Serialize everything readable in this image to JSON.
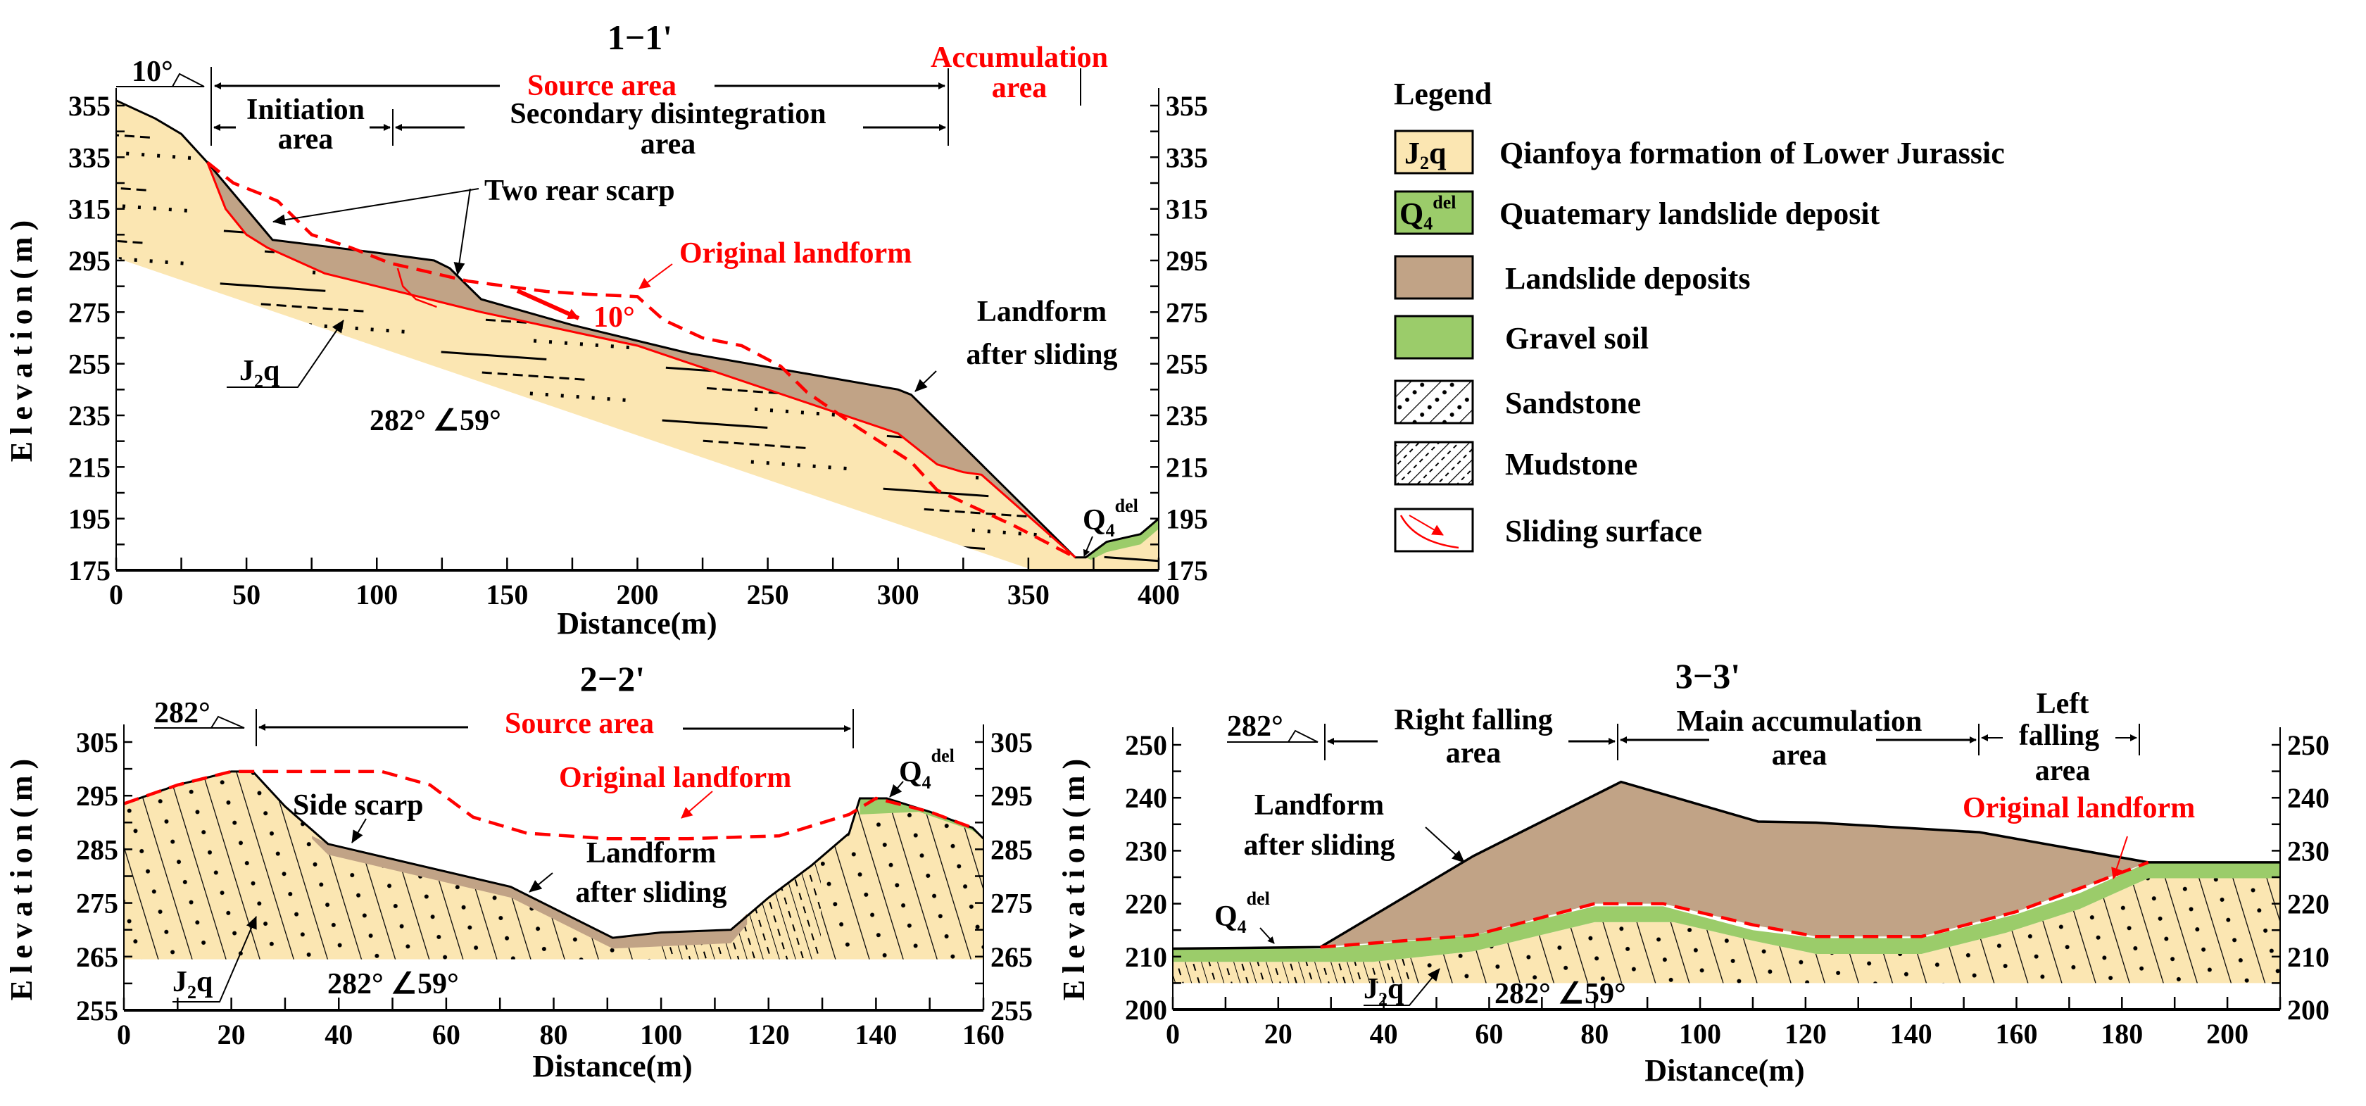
{
  "colors": {
    "bedrock": "#fbe6b2",
    "deposit": "#c1a386",
    "gravel": "#9bcc6a",
    "sliding": "#ff0000",
    "text_red": "#ff0000"
  },
  "legend": {
    "title": "Legend",
    "items": [
      {
        "symbol": {
          "main": "J",
          "sub": "2",
          "tail": "q"
        },
        "label": "Qianfoya formation of Lower Jurassic"
      },
      {
        "symbol": {
          "main": "Q",
          "sub": "4",
          "sup": "del"
        },
        "label": "Quatemary landslide deposit"
      },
      {
        "label": "Landslide deposits"
      },
      {
        "label": "Gravel soil"
      },
      {
        "label": "Sandstone"
      },
      {
        "label": "Mudstone"
      },
      {
        "label": "Sliding surface"
      }
    ]
  },
  "panel1": {
    "title": "1−1'",
    "xlabel": "Distance(m)",
    "ylabel": "Elevation(m)",
    "xlim": [
      0,
      400
    ],
    "ylim": [
      175,
      355
    ],
    "xticks": [
      0,
      50,
      100,
      150,
      200,
      250,
      300,
      350,
      400
    ],
    "yticks": [
      355,
      335,
      315,
      295,
      275,
      255,
      235,
      215,
      195,
      175
    ],
    "dip_direction": "10°",
    "source_area": "Source area",
    "accumulation_area": [
      "Accumulation",
      "area"
    ],
    "initiation_area": [
      "Initiation",
      "area"
    ],
    "secondary_area": [
      "Secondary disintegration",
      "area"
    ],
    "rear_scarp": "Two rear scarp",
    "original_landform": "Original  landform",
    "slide_angle": "10°",
    "landform_after": [
      "Landform",
      "after sliding"
    ],
    "formation": {
      "main": "J",
      "sub": "2",
      "tail": "q"
    },
    "attitude": "282°   ∠59°",
    "deposit": {
      "main": "Q",
      "sub": "4",
      "sup": "del"
    },
    "ground_after": [
      [
        0,
        357
      ],
      [
        15,
        350
      ],
      [
        25,
        344
      ],
      [
        35,
        333
      ],
      [
        60,
        303
      ],
      [
        100,
        298
      ],
      [
        122,
        295
      ],
      [
        128,
        292
      ],
      [
        140,
        280
      ],
      [
        175,
        270
      ],
      [
        220,
        259
      ],
      [
        300,
        245
      ],
      [
        305,
        243
      ],
      [
        368,
        180
      ],
      [
        372,
        180
      ],
      [
        380,
        186
      ],
      [
        393,
        189
      ],
      [
        400,
        195
      ]
    ],
    "sliding_surface": [
      [
        35,
        333
      ],
      [
        42,
        315
      ],
      [
        50,
        305
      ],
      [
        58,
        300
      ],
      [
        80,
        290
      ],
      [
        140,
        275
      ],
      [
        200,
        262
      ],
      [
        300,
        228
      ],
      [
        315,
        216
      ],
      [
        325,
        213
      ],
      [
        332,
        212
      ],
      [
        368,
        180
      ]
    ],
    "secondary_surface": [
      [
        108,
        292
      ],
      [
        110,
        285
      ],
      [
        115,
        280
      ],
      [
        123,
        277
      ]
    ],
    "original": [
      [
        35,
        333
      ],
      [
        45,
        325
      ],
      [
        55,
        321
      ],
      [
        62,
        318
      ],
      [
        68,
        312
      ],
      [
        75,
        305
      ],
      [
        90,
        300
      ],
      [
        105,
        294
      ],
      [
        135,
        287
      ],
      [
        165,
        283
      ],
      [
        180,
        282
      ],
      [
        200,
        281
      ],
      [
        210,
        272
      ],
      [
        225,
        265
      ],
      [
        240,
        262
      ],
      [
        255,
        254
      ],
      [
        265,
        244
      ],
      [
        285,
        230
      ],
      [
        305,
        217
      ],
      [
        315,
        206
      ],
      [
        345,
        192
      ],
      [
        368,
        180
      ]
    ]
  },
  "panel2": {
    "title": "2−2'",
    "xlabel": "Distance(m)",
    "ylabel": "Elevation(m)",
    "xlim": [
      0,
      160
    ],
    "ylim": [
      255,
      305
    ],
    "xticks": [
      0,
      20,
      40,
      60,
      80,
      100,
      120,
      140,
      160
    ],
    "yticks": [
      305,
      295,
      285,
      275,
      265,
      255
    ],
    "dip_direction": "282°",
    "source_area": "Source area",
    "original_landform": "Original  landform",
    "side_scarp": "Side scarp",
    "landform_after": [
      "Landform",
      "after sliding"
    ],
    "formation": {
      "main": "J",
      "sub": "2",
      "tail": "q"
    },
    "attitude": "282°   ∠59°",
    "deposit": {
      "main": "Q",
      "sub": "4",
      "sup": "del"
    },
    "base": 264.5,
    "ground_after": [
      [
        0,
        293.5
      ],
      [
        10,
        297
      ],
      [
        20,
        299.5
      ],
      [
        24,
        299.5
      ],
      [
        30,
        293
      ],
      [
        38,
        286
      ],
      [
        72,
        278
      ],
      [
        91,
        268.5
      ],
      [
        100,
        269.5
      ],
      [
        113,
        270
      ],
      [
        120,
        276
      ],
      [
        128,
        282
      ],
      [
        135,
        288
      ],
      [
        137,
        294.5
      ],
      [
        142,
        294.5
      ],
      [
        150,
        292
      ],
      [
        158,
        289
      ],
      [
        160,
        287
      ]
    ],
    "deposit_bottom": [
      [
        35,
        287
      ],
      [
        38,
        284
      ],
      [
        72,
        276
      ],
      [
        91,
        266.5
      ],
      [
        113,
        267.5
      ],
      [
        116,
        271
      ]
    ],
    "gravel_bottom": [
      [
        137,
        291.5
      ],
      [
        148,
        292
      ],
      [
        158,
        288.5
      ],
      [
        160,
        287
      ]
    ],
    "original": [
      [
        0,
        293.5
      ],
      [
        10,
        297
      ],
      [
        20,
        299.5
      ],
      [
        48,
        299.5
      ],
      [
        57,
        297
      ],
      [
        65,
        291
      ],
      [
        75,
        288
      ],
      [
        90,
        287
      ],
      [
        105,
        287
      ],
      [
        122,
        287.5
      ],
      [
        135,
        291.5
      ],
      [
        140,
        294.5
      ],
      [
        150,
        292
      ],
      [
        158,
        289
      ]
    ]
  },
  "panel3": {
    "title": "3−3'",
    "xlabel": "Distance(m)",
    "ylabel": "Elevation(m)",
    "xlim": [
      0,
      210
    ],
    "ylim": [
      200,
      250
    ],
    "xticks": [
      0,
      20,
      40,
      60,
      80,
      100,
      120,
      140,
      160,
      180,
      200
    ],
    "yticks": [
      250,
      240,
      230,
      220,
      210,
      200
    ],
    "dip_direction": "282°",
    "right_falling": [
      "Right falling",
      "area"
    ],
    "main_accumulation": [
      "Main accumulation",
      "area"
    ],
    "left_falling": [
      "Left",
      "falling",
      "area"
    ],
    "landform_after": [
      "Landform",
      "after sliding"
    ],
    "original_landform": "Original  landform",
    "formation": {
      "main": "J",
      "sub": "2",
      "tail": "q"
    },
    "attitude": "282°   ∠59°",
    "deposit": {
      "main": "Q",
      "sub": "4",
      "sup": "del"
    },
    "base": 205,
    "ground_after": [
      [
        0,
        211.5
      ],
      [
        28,
        211.8
      ],
      [
        57,
        229
      ],
      [
        85,
        243
      ],
      [
        111,
        235.5
      ],
      [
        122,
        235.3
      ],
      [
        153,
        233.5
      ],
      [
        185,
        227.8
      ],
      [
        210,
        227.8
      ]
    ],
    "gravel_top": [
      [
        0,
        211.5
      ],
      [
        28,
        211.5
      ],
      [
        57,
        214
      ],
      [
        80,
        219.5
      ],
      [
        93,
        219.5
      ],
      [
        110,
        215
      ],
      [
        122,
        213.5
      ],
      [
        142,
        213.5
      ],
      [
        160,
        218
      ],
      [
        172,
        222
      ],
      [
        185,
        227.8
      ],
      [
        210,
        227.8
      ]
    ],
    "gravel_bottom": [
      [
        0,
        209
      ],
      [
        38,
        209
      ],
      [
        57,
        211
      ],
      [
        80,
        216.5
      ],
      [
        95,
        216.5
      ],
      [
        110,
        213
      ],
      [
        122,
        210.5
      ],
      [
        142,
        210.5
      ],
      [
        158,
        214.5
      ],
      [
        172,
        219
      ],
      [
        185,
        224.8
      ],
      [
        210,
        224.8
      ]
    ],
    "original": [
      [
        28,
        211.8
      ],
      [
        57,
        214
      ],
      [
        80,
        220
      ],
      [
        93,
        220
      ],
      [
        110,
        216
      ],
      [
        122,
        213.8
      ],
      [
        142,
        213.8
      ],
      [
        160,
        218.5
      ],
      [
        175,
        224
      ],
      [
        185,
        227.8
      ]
    ]
  }
}
